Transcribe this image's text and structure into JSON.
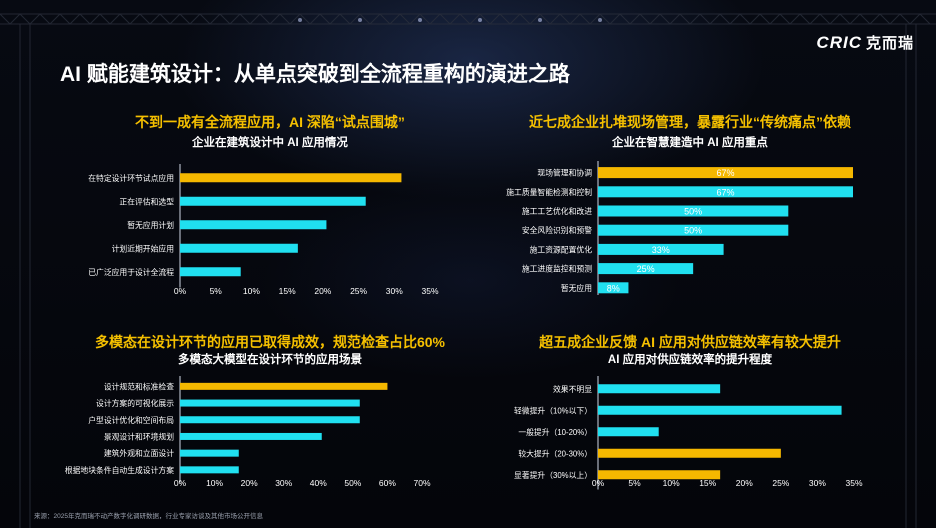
{
  "logo": {
    "brand": "CRIC",
    "cn": "克而瑞"
  },
  "page_title": "AI 赋能建筑设计：从单点突破到全流程重构的演进之路",
  "source": "来源：2025年克而瑞不动产数字化调研数据，行业专家访谈及其他市场公开信息",
  "colors": {
    "highlight": "#f5b800",
    "bar": "#20e0f0",
    "heading": "#f5c000"
  },
  "chart_data": [
    {
      "type": "bar",
      "orientation": "horizontal",
      "heading": "不到一成有全流程应用，AI 深陷“试点围城”",
      "title": "企业在建筑设计中 AI 应用情况",
      "categories": [
        "在特定设计环节试点应用",
        "正在评估和选型",
        "暂无应用计划",
        "计划近期开始应用",
        "已广泛应用于设计全流程"
      ],
      "values": [
        31,
        26,
        20.5,
        16.5,
        8.5
      ],
      "highlight_index": 0,
      "xlim": [
        0,
        35
      ],
      "ticks": [
        "0%",
        "5%",
        "10%",
        "15%",
        "20%",
        "25%",
        "30%",
        "35%"
      ],
      "grid": false
    },
    {
      "type": "bar",
      "orientation": "horizontal",
      "heading": "近七成企业扎堆现场管理，暴露行业“传统痛点”依赖",
      "title": "企业在智慧建造中 AI 应用重点",
      "categories": [
        "现场管理和协调",
        "施工质量智能检测和控制",
        "施工工艺优化和改进",
        "安全风险识别和预警",
        "施工资源配置优化",
        "施工进度监控和预测",
        "暂无应用"
      ],
      "values": [
        67,
        67,
        50,
        50,
        33,
        25,
        8
      ],
      "data_labels": [
        "67%",
        "67%",
        "50%",
        "50%",
        "33%",
        "25%",
        "8%"
      ],
      "highlight_index": 0,
      "xlim": [
        0,
        67
      ],
      "grid": false
    },
    {
      "type": "bar",
      "orientation": "horizontal",
      "heading": "多模态在设计环节的应用已取得成效，规范检查占比60%",
      "title": "多模态大模型在设计环节的应用场景",
      "categories": [
        "设计规范和标准检查",
        "设计方案的可视化展示",
        "户型设计优化和空间布局",
        "景观设计和环境规划",
        "建筑外观和立面设计",
        "根据地块条件自动生成设计方案"
      ],
      "values": [
        60,
        52,
        52,
        41,
        17,
        17
      ],
      "highlight_index": 0,
      "xlim": [
        0,
        70
      ],
      "ticks": [
        "0%",
        "10%",
        "20%",
        "30%",
        "40%",
        "50%",
        "60%",
        "70%"
      ],
      "grid": false
    },
    {
      "type": "bar",
      "orientation": "horizontal",
      "heading": "超五成企业反馈 AI 应用对供应链效率有较大提升",
      "title": "AI 应用对供应链效率的提升程度",
      "categories": [
        "效果不明显",
        "轻微提升（10%以下）",
        "一般提升（10-20%）",
        "较大提升（20-30%）",
        "显著提升（30%以上）"
      ],
      "values": [
        16.7,
        33.3,
        8.3,
        25,
        16.7
      ],
      "highlight_indices": [
        3,
        4
      ],
      "xlim": [
        0,
        35
      ],
      "ticks": [
        "0%",
        "5%",
        "10%",
        "15%",
        "20%",
        "25%",
        "30%",
        "35%"
      ],
      "grid": false
    }
  ]
}
